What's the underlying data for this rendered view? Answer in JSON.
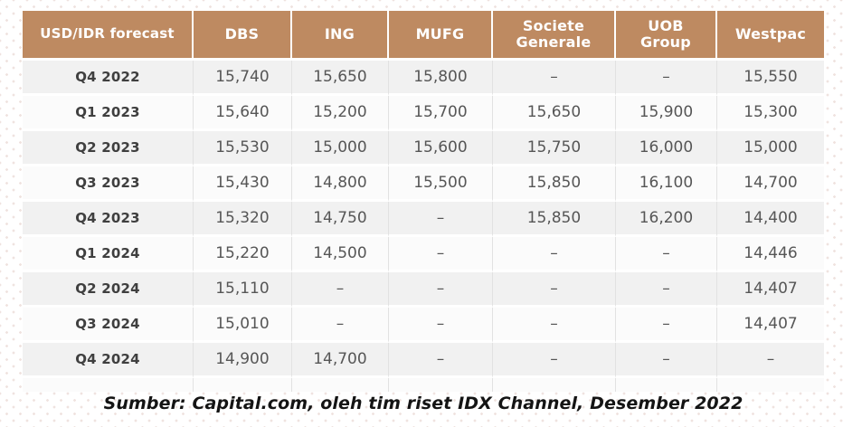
{
  "colors": {
    "header_bg": "#BE8A61",
    "header_text": "#FFFFFF",
    "row_alt_bg": "#F1F1F1",
    "row_bg": "#FBFBFB",
    "label_text": "#3F3F3F",
    "value_text": "#565656"
  },
  "table": {
    "columns": [
      "USD/IDR forecast",
      "DBS",
      "ING",
      "MUFG",
      "Societe Generale",
      "UOB Group",
      "Westpac"
    ],
    "rows": [
      {
        "label": "Q4 2022",
        "values": [
          "15,740",
          "15,650",
          "15,800",
          "–",
          "–",
          "15,550"
        ]
      },
      {
        "label": "Q1 2023",
        "values": [
          "15,640",
          "15,200",
          "15,700",
          "15,650",
          "15,900",
          "15,300"
        ]
      },
      {
        "label": "Q2 2023",
        "values": [
          "15,530",
          "15,000",
          "15,600",
          "15,750",
          "16,000",
          "15,000"
        ]
      },
      {
        "label": "Q3 2023",
        "values": [
          "15,430",
          "14,800",
          "15,500",
          "15,850",
          "16,100",
          "14,700"
        ]
      },
      {
        "label": "Q4 2023",
        "values": [
          "15,320",
          "14,750",
          "–",
          "15,850",
          "16,200",
          "14,400"
        ]
      },
      {
        "label": "Q1 2024",
        "values": [
          "15,220",
          "14,500",
          "–",
          "–",
          "–",
          "14,446"
        ]
      },
      {
        "label": "Q2 2024",
        "values": [
          "15,110",
          "–",
          "–",
          "–",
          "–",
          "14,407"
        ]
      },
      {
        "label": "Q3 2024",
        "values": [
          "15,010",
          "–",
          "–",
          "–",
          "–",
          "14,407"
        ]
      },
      {
        "label": "Q4 2024",
        "values": [
          "14,900",
          "14,700",
          "–",
          "–",
          "–",
          "–"
        ]
      }
    ]
  },
  "footer": {
    "source_text": "Sumber: Capital.com, oleh tim riset IDX Channel, Desember 2022"
  },
  "chart_data": {
    "type": "table",
    "title": "USD/IDR forecast",
    "categories": [
      "Q4 2022",
      "Q1 2023",
      "Q2 2023",
      "Q3 2023",
      "Q4 2023",
      "Q1 2024",
      "Q2 2024",
      "Q3 2024",
      "Q4 2024"
    ],
    "series": [
      {
        "name": "DBS",
        "values": [
          15740,
          15640,
          15530,
          15430,
          15320,
          15220,
          15110,
          15010,
          14900
        ]
      },
      {
        "name": "ING",
        "values": [
          15650,
          15200,
          15000,
          14800,
          14750,
          14500,
          null,
          null,
          14700
        ]
      },
      {
        "name": "MUFG",
        "values": [
          15800,
          15700,
          15600,
          15500,
          null,
          null,
          null,
          null,
          null
        ]
      },
      {
        "name": "Societe Generale",
        "values": [
          null,
          15650,
          15750,
          15850,
          15850,
          null,
          null,
          null,
          null
        ]
      },
      {
        "name": "UOB Group",
        "values": [
          null,
          15900,
          16000,
          16100,
          16200,
          null,
          null,
          null,
          null
        ]
      },
      {
        "name": "Westpac",
        "values": [
          15550,
          15300,
          15000,
          14700,
          14400,
          14446,
          14407,
          14407,
          null
        ]
      }
    ],
    "layout": {
      "header_fill": "#BE8A61",
      "striped_rows": true,
      "source_note": "Sumber: Capital.com, oleh tim riset IDX Channel, Desember 2022"
    }
  }
}
